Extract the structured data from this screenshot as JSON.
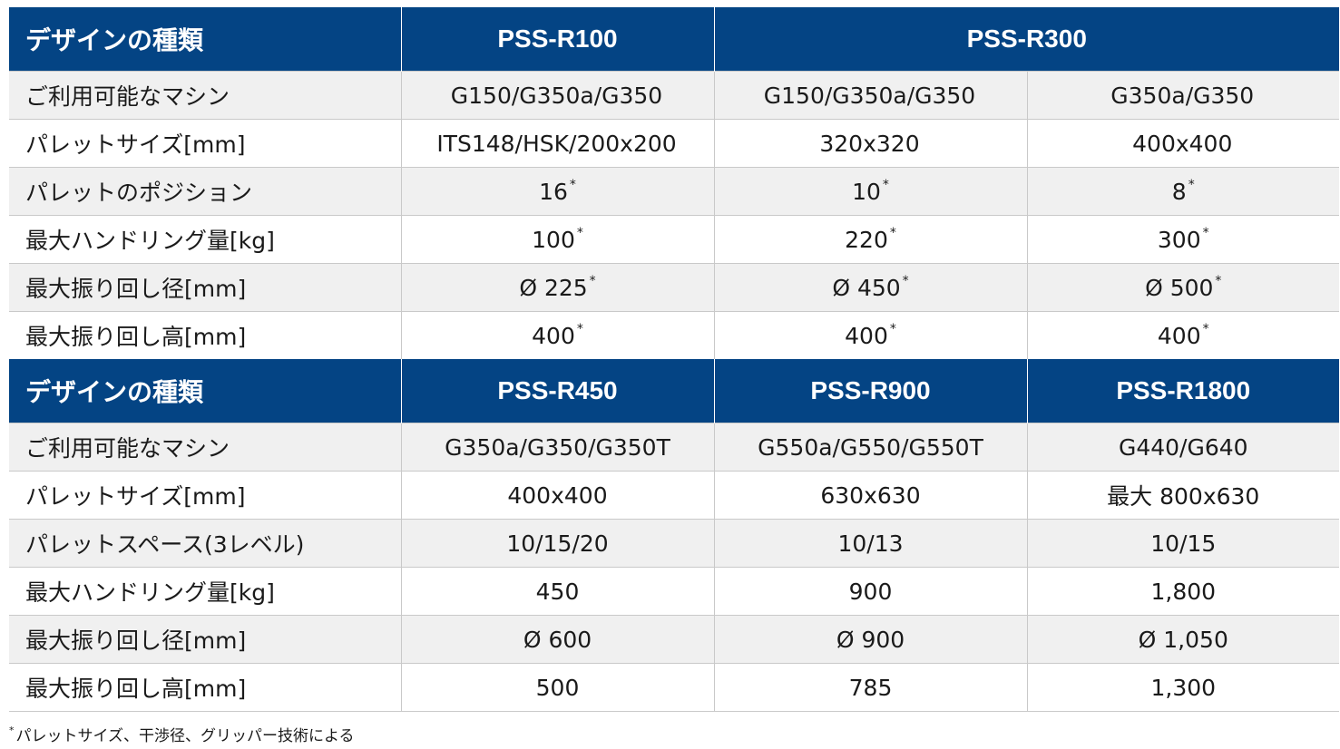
{
  "table1": {
    "header": {
      "label": "デザインの種類",
      "c1": "PSS-R100",
      "c23": "PSS-R300"
    },
    "rows": [
      {
        "label": "ご利用可能なマシン",
        "v1": "G150/G350a/G350",
        "v2": "G150/G350a/G350",
        "v3": "G350a/G350",
        "s1": "",
        "s2": "",
        "s3": ""
      },
      {
        "label": "パレットサイズ[mm]",
        "v1": "ITS148/HSK/200x200",
        "v2": "320x320",
        "v3": "400x400",
        "s1": "",
        "s2": "",
        "s3": ""
      },
      {
        "label": "パレットのポジション",
        "v1": "16",
        "v2": "10",
        "v3": "8",
        "s1": "*",
        "s2": "*",
        "s3": "*"
      },
      {
        "label": "最大ハンドリング量[kg]",
        "v1": "100",
        "v2": "220",
        "v3": "300",
        "s1": "*",
        "s2": "*",
        "s3": "*"
      },
      {
        "label": "最大振り回し径[mm]",
        "v1": "Ø 225",
        "v2": "Ø 450",
        "v3": "Ø 500",
        "s1": "*",
        "s2": "*",
        "s3": "*"
      },
      {
        "label": "最大振り回し高[mm]",
        "v1": "400",
        "v2": "400",
        "v3": "400",
        "s1": "*",
        "s2": "*",
        "s3": "*"
      }
    ]
  },
  "table2": {
    "header": {
      "label": "デザインの種類",
      "c1": "PSS-R450",
      "c2": "PSS-R900",
      "c3": "PSS-R1800"
    },
    "rows": [
      {
        "label": "ご利用可能なマシン",
        "v1": "G350a/G350/G350T",
        "v2": "G550a/G550/G550T",
        "v3": "G440/G640"
      },
      {
        "label": "パレットサイズ[mm]",
        "v1": "400x400",
        "v2": "630x630",
        "v3": "最大 800x630"
      },
      {
        "label": "パレットスペース(3レベル)",
        "v1": "10/15/20",
        "v2": "10/13",
        "v3": "10/15"
      },
      {
        "label": "最大ハンドリング量[kg]",
        "v1": "450",
        "v2": "900",
        "v3": "1,800"
      },
      {
        "label": "最大振り回し径[mm]",
        "v1": "Ø 600",
        "v2": "Ø 900",
        "v3": "Ø 1,050"
      },
      {
        "label": "最大振り回し高[mm]",
        "v1": "500",
        "v2": "785",
        "v3": "1,300"
      }
    ]
  },
  "footnote": {
    "mark": "*",
    "text": "パレットサイズ、干渉径、グリッパー技術による"
  }
}
